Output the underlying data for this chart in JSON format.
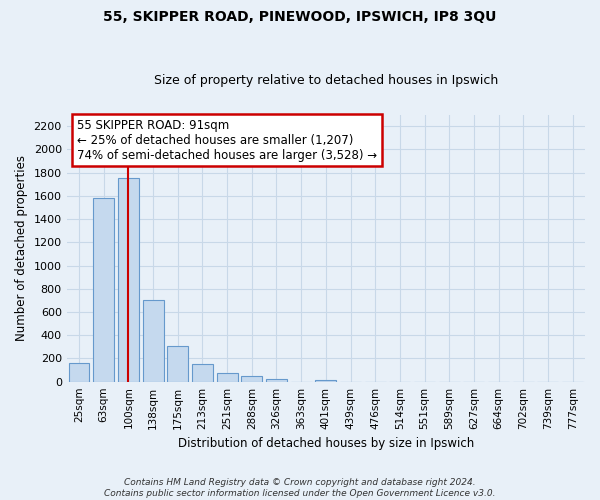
{
  "title": "55, SKIPPER ROAD, PINEWOOD, IPSWICH, IP8 3QU",
  "subtitle": "Size of property relative to detached houses in Ipswich",
  "xlabel": "Distribution of detached houses by size in Ipswich",
  "ylabel": "Number of detached properties",
  "categories": [
    "25sqm",
    "63sqm",
    "100sqm",
    "138sqm",
    "175sqm",
    "213sqm",
    "251sqm",
    "288sqm",
    "326sqm",
    "363sqm",
    "401sqm",
    "439sqm",
    "476sqm",
    "514sqm",
    "551sqm",
    "589sqm",
    "627sqm",
    "664sqm",
    "702sqm",
    "739sqm",
    "777sqm"
  ],
  "values": [
    160,
    1580,
    1750,
    700,
    310,
    150,
    75,
    45,
    25,
    0,
    15,
    0,
    0,
    0,
    0,
    0,
    0,
    0,
    0,
    0,
    0
  ],
  "bar_color": "#c5d9ee",
  "bar_edge_color": "#6699cc",
  "vline_x": 2,
  "vline_color": "#cc0000",
  "annotation_line1": "55 SKIPPER ROAD: 91sqm",
  "annotation_line2": "← 25% of detached houses are smaller (1,207)",
  "annotation_line3": "74% of semi-detached houses are larger (3,528) →",
  "annotation_box_color": "#ffffff",
  "annotation_box_edge": "#cc0000",
  "ylim": [
    0,
    2300
  ],
  "yticks": [
    0,
    200,
    400,
    600,
    800,
    1000,
    1200,
    1400,
    1600,
    1800,
    2000,
    2200
  ],
  "grid_color": "#c8d8e8",
  "footnote_line1": "Contains HM Land Registry data © Crown copyright and database right 2024.",
  "footnote_line2": "Contains public sector information licensed under the Open Government Licence v3.0.",
  "background_color": "#e8f0f8"
}
